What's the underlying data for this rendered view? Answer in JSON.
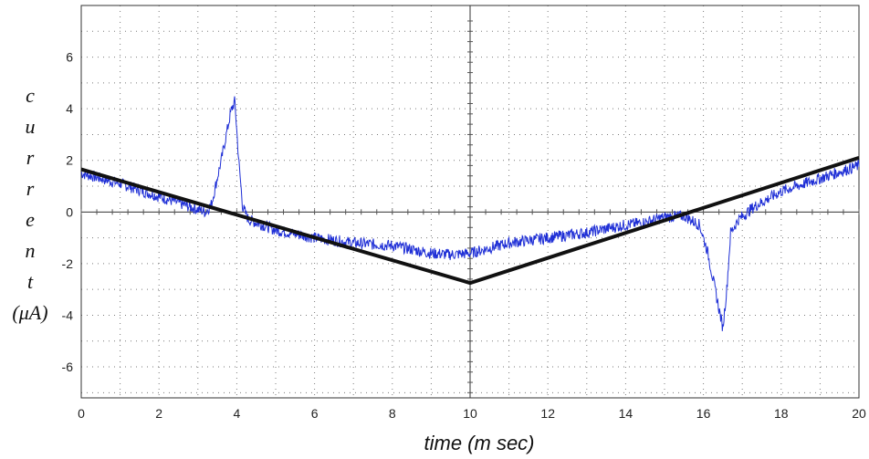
{
  "chart_data": {
    "type": "line",
    "title": "",
    "xlabel": "time (m sec)",
    "ylabel_chars": [
      "c",
      "u",
      "r",
      "r",
      "e",
      "n",
      "t",
      "(μA)"
    ],
    "xlim": [
      0,
      20
    ],
    "ylim": [
      -7.2,
      8
    ],
    "x_ticks": [
      "0",
      "2",
      "4",
      "6",
      "8",
      "10",
      "12",
      "14",
      "16",
      "18",
      "20"
    ],
    "y_ticks": [
      "6",
      "4",
      "2",
      "0",
      "-2",
      "-4",
      "-6"
    ],
    "grid": "dotted",
    "legend": "none",
    "series": [
      {
        "color": "#1f2fd6",
        "style": "noisy",
        "x": [
          0,
          1,
          2,
          2.8,
          3.2,
          3.35,
          3.6,
          3.85,
          3.95,
          4.05,
          4.15,
          4.3,
          5,
          6,
          7,
          8,
          9,
          9.5,
          10,
          10.5,
          11,
          12,
          13,
          14,
          14.5,
          15,
          15.5,
          15.9,
          16.1,
          16.3,
          16.5,
          16.6,
          16.7,
          16.9,
          17.3,
          18,
          19,
          20
        ],
        "y": [
          1.5,
          1.1,
          0.6,
          0.2,
          0.0,
          0.3,
          2.0,
          3.9,
          4.3,
          2.0,
          0.2,
          -0.3,
          -0.7,
          -1.0,
          -1.2,
          -1.3,
          -1.6,
          -1.65,
          -1.6,
          -1.4,
          -1.2,
          -1.0,
          -0.8,
          -0.5,
          -0.4,
          -0.2,
          -0.15,
          -0.5,
          -1.5,
          -3.0,
          -4.5,
          -3.0,
          -0.8,
          -0.3,
          0.2,
          0.8,
          1.3,
          1.8
        ]
      },
      {
        "color": "#111111",
        "style": "thick",
        "x": [
          0,
          10,
          20
        ],
        "y": [
          1.65,
          -2.75,
          2.1
        ]
      }
    ]
  }
}
